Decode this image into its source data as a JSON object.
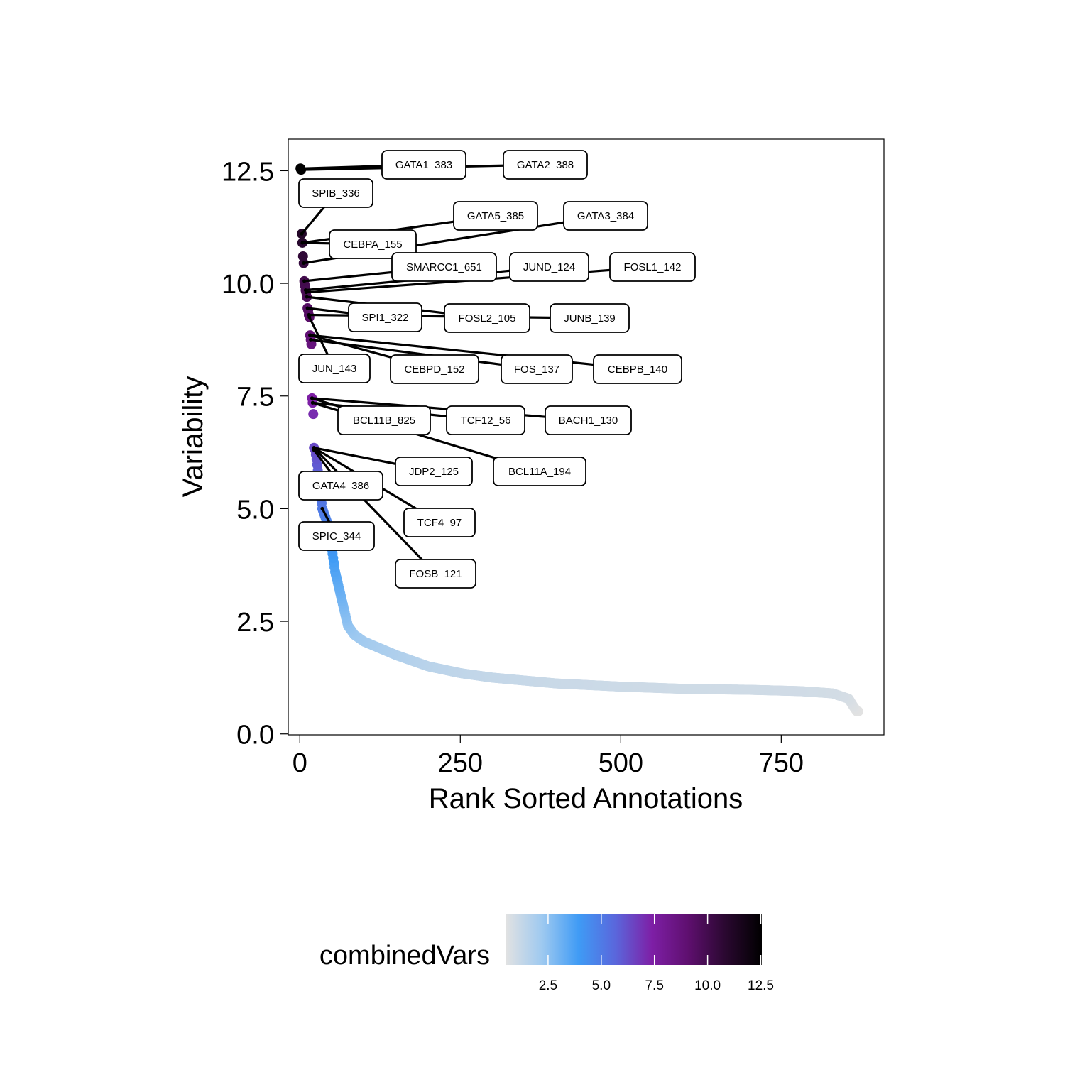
{
  "chart_data": {
    "type": "scatter",
    "xlabel": "Rank Sorted Annotations",
    "ylabel": "Variability",
    "xlim": [
      -18,
      910
    ],
    "ylim": [
      -0.02,
      13.2
    ],
    "x_ticks": [
      0,
      250,
      500,
      750
    ],
    "x_tick_labels": [
      "0",
      "250",
      "500",
      "750"
    ],
    "y_ticks": [
      0,
      2.5,
      5,
      7.5,
      10,
      12.5
    ],
    "y_tick_labels": [
      "0.0",
      "2.5",
      "5.0",
      "7.5",
      "10.0",
      "12.5"
    ],
    "grid": false,
    "point_count": 870,
    "curve_keypoints": [
      [
        1,
        12.55
      ],
      [
        2,
        12.52
      ],
      [
        3,
        11.1
      ],
      [
        4,
        10.9
      ],
      [
        5,
        10.6
      ],
      [
        6,
        10.45
      ],
      [
        7,
        10.05
      ],
      [
        8,
        9.95
      ],
      [
        9,
        9.85
      ],
      [
        10,
        9.8
      ],
      [
        11,
        9.7
      ],
      [
        12,
        9.45
      ],
      [
        13,
        9.4
      ],
      [
        14,
        9.3
      ],
      [
        15,
        9.25
      ],
      [
        16,
        8.85
      ],
      [
        17,
        8.75
      ],
      [
        18,
        8.65
      ],
      [
        19,
        7.45
      ],
      [
        20,
        7.35
      ],
      [
        21,
        7.1
      ],
      [
        22,
        6.35
      ],
      [
        24,
        6.3
      ],
      [
        26,
        6.1
      ],
      [
        30,
        5.6
      ],
      [
        35,
        5.0
      ],
      [
        45,
        4.6
      ],
      [
        55,
        3.6
      ],
      [
        65,
        3.0
      ],
      [
        75,
        2.4
      ],
      [
        85,
        2.2
      ],
      [
        100,
        2.05
      ],
      [
        150,
        1.75
      ],
      [
        200,
        1.5
      ],
      [
        250,
        1.35
      ],
      [
        300,
        1.25
      ],
      [
        400,
        1.12
      ],
      [
        500,
        1.05
      ],
      [
        600,
        1.0
      ],
      [
        700,
        0.98
      ],
      [
        780,
        0.95
      ],
      [
        830,
        0.9
      ],
      [
        855,
        0.78
      ],
      [
        862,
        0.62
      ],
      [
        868,
        0.5
      ]
    ],
    "labeled_points": [
      {
        "name": "GATA1_383",
        "x": 1,
        "y": 12.55
      },
      {
        "name": "GATA2_388",
        "x": 2,
        "y": 12.52
      },
      {
        "name": "SPIB_336",
        "x": 3,
        "y": 11.1
      },
      {
        "name": "CEBPA_155",
        "x": 4,
        "y": 10.9
      },
      {
        "name": "GATA5_385",
        "x": 4,
        "y": 10.9
      },
      {
        "name": "GATA3_384",
        "x": 6,
        "y": 10.45
      },
      {
        "name": "SMARCC1_651",
        "x": 7,
        "y": 10.05
      },
      {
        "name": "JUND_124",
        "x": 9,
        "y": 9.85
      },
      {
        "name": "FOSL1_142",
        "x": 10,
        "y": 9.8
      },
      {
        "name": "SPI1_322",
        "x": 12,
        "y": 9.45
      },
      {
        "name": "FOSL2_105",
        "x": 11,
        "y": 9.7
      },
      {
        "name": "JUNB_139",
        "x": 14,
        "y": 9.3
      },
      {
        "name": "JUN_143",
        "x": 15,
        "y": 9.25
      },
      {
        "name": "CEBPD_152",
        "x": 16,
        "y": 8.85
      },
      {
        "name": "FOS_137",
        "x": 17,
        "y": 8.75
      },
      {
        "name": "CEBPB_140",
        "x": 16,
        "y": 8.85
      },
      {
        "name": "BCL11B_825",
        "x": 19,
        "y": 7.45
      },
      {
        "name": "TCF12_56",
        "x": 20,
        "y": 7.35
      },
      {
        "name": "BACH1_130",
        "x": 19,
        "y": 7.45
      },
      {
        "name": "BCL11A_194",
        "x": 20,
        "y": 7.35
      },
      {
        "name": "JDP2_125",
        "x": 22,
        "y": 6.35
      },
      {
        "name": "GATA4_386",
        "x": 22,
        "y": 6.3
      },
      {
        "name": "TCF4_97",
        "x": 22,
        "y": 6.35
      },
      {
        "name": "SPIC_344",
        "x": 35,
        "y": 5.0
      },
      {
        "name": "FOSB_121",
        "x": 22,
        "y": 6.35
      }
    ],
    "legend": {
      "title": "combinedVars",
      "placement": "bottom",
      "ticks": [
        2.5,
        5.0,
        7.5,
        10.0,
        12.5
      ],
      "tick_labels": [
        "2.5",
        "5.0",
        "7.5",
        "10.0",
        "12.5"
      ],
      "range": [
        0.5,
        12.55
      ],
      "colors": [
        "#e2e2e2",
        "#9ec9f0",
        "#3f9bf5",
        "#5a67dc",
        "#7e1fa6",
        "#5e0f6e",
        "#2a0830",
        "#000000"
      ]
    }
  }
}
